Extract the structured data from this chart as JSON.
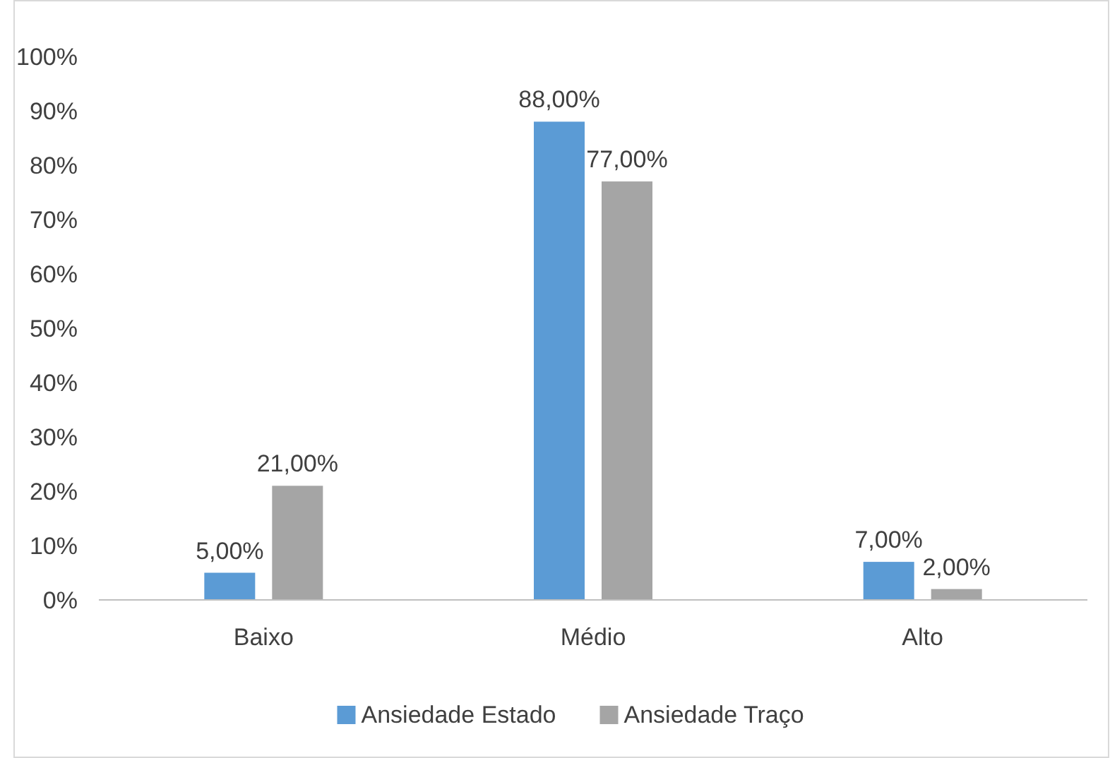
{
  "chart_data": {
    "type": "bar",
    "categories": [
      "Baixo",
      "Médio",
      "Alto"
    ],
    "series": [
      {
        "name": "Ansiedade Estado",
        "color": "#5b9bd5",
        "values": [
          5,
          88,
          7
        ],
        "value_labels": [
          "5,00%",
          "88,00%",
          "7,00%"
        ]
      },
      {
        "name": "Ansiedade Traço",
        "color": "#a5a5a5",
        "values": [
          21,
          77,
          2
        ],
        "value_labels": [
          "21,00%",
          "77,00%",
          "2,00%"
        ]
      }
    ],
    "ylim": [
      0,
      100
    ],
    "yticks": [
      {
        "value": 0,
        "label": "0%"
      },
      {
        "value": 10,
        "label": "10%"
      },
      {
        "value": 20,
        "label": "20%"
      },
      {
        "value": 30,
        "label": "30%"
      },
      {
        "value": 40,
        "label": "40%"
      },
      {
        "value": 50,
        "label": "50%"
      },
      {
        "value": 60,
        "label": "60%"
      },
      {
        "value": 70,
        "label": "70%"
      },
      {
        "value": 80,
        "label": "80%"
      },
      {
        "value": 90,
        "label": "90%"
      },
      {
        "value": 100,
        "label": "100%"
      }
    ],
    "grid": false,
    "legend": "bottom"
  }
}
